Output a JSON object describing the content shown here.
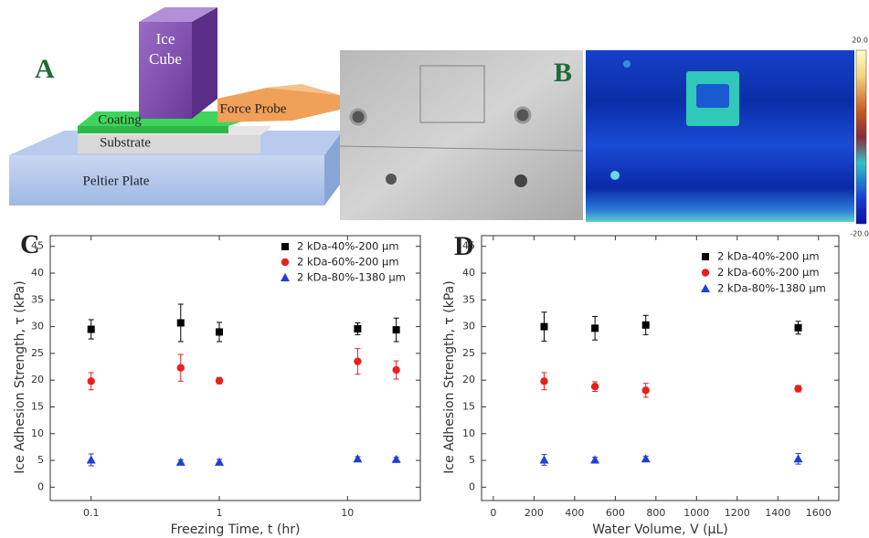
{
  "diagram": {
    "label": "A",
    "ice_cube": [
      "Ice",
      "Cube"
    ],
    "coating": "Coating",
    "force_probe": "Force Probe",
    "substrate": "Substrate",
    "peltier_plate": "Peltier Plate"
  },
  "image": {
    "label": "B",
    "colorbar_max": "20.0",
    "colorbar_min": "-20.0"
  },
  "chart_data": [
    {
      "type": "scatter",
      "label": "C",
      "x_label": "Freezing Time, t (hr)",
      "y_label": "Ice Adhesion Strength, τ (kPa)",
      "x_log": true,
      "xlim": [
        0.048,
        37
      ],
      "xticks": [
        0.1,
        1,
        10
      ],
      "ylim": [
        -2.5,
        47
      ],
      "yticks": [
        0,
        5,
        10,
        15,
        20,
        25,
        30,
        35,
        40,
        45
      ],
      "x": [
        0.1,
        0.5,
        1,
        12,
        24
      ],
      "series": [
        {
          "name": "2 kDa-40%-200 μm",
          "color": "#000000",
          "marker": "square",
          "values": [
            29.5,
            30.7,
            29,
            29.6,
            29.4
          ],
          "errors": [
            1.8,
            3.5,
            1.8,
            1.1,
            2.2
          ]
        },
        {
          "name": "2 kDa-60%-200 μm",
          "color": "#e8201c",
          "marker": "circle",
          "values": [
            19.8,
            22.3,
            19.9,
            23.5,
            21.9
          ],
          "errors": [
            1.6,
            2.5,
            0.6,
            2.4,
            1.7
          ]
        },
        {
          "name": "2 kDa-80%-1380 μm",
          "color": "#1f3fd8",
          "marker": "triangle",
          "values": [
            5.1,
            4.7,
            4.7,
            5.3,
            5.2
          ],
          "errors": [
            1.1,
            0.4,
            0.5,
            0.4,
            0.4
          ]
        }
      ]
    },
    {
      "type": "scatter",
      "label": "D",
      "x_label": "Water Volume, V (μL)",
      "y_label": "Ice Adhesion Strength, τ (kPa)",
      "x_log": false,
      "xlim": [
        -58,
        1700
      ],
      "xticks": [
        0,
        200,
        400,
        600,
        800,
        1000,
        1200,
        1400,
        1600
      ],
      "ylim": [
        -2.5,
        47
      ],
      "yticks": [
        0,
        5,
        10,
        15,
        20,
        25,
        30,
        35,
        40,
        45
      ],
      "x": [
        250,
        500,
        750,
        1500
      ],
      "series": [
        {
          "name": "2 kDa-40%-200 μm",
          "color": "#000000",
          "marker": "square",
          "values": [
            30,
            29.7,
            30.3,
            29.8
          ],
          "errors": [
            2.7,
            2.2,
            1.8,
            1.2
          ]
        },
        {
          "name": "2 kDa-60%-200 μm",
          "color": "#e8201c",
          "marker": "circle",
          "values": [
            19.8,
            18.8,
            18.1,
            18.4
          ],
          "errors": [
            1.6,
            0.9,
            1.3,
            0.6
          ]
        },
        {
          "name": "2 kDa-80%-1380 μm",
          "color": "#1f3fd8",
          "marker": "triangle",
          "values": [
            5.1,
            5.1,
            5.3,
            5.3
          ],
          "errors": [
            1.0,
            0.5,
            0.5,
            1.0
          ]
        }
      ]
    }
  ]
}
